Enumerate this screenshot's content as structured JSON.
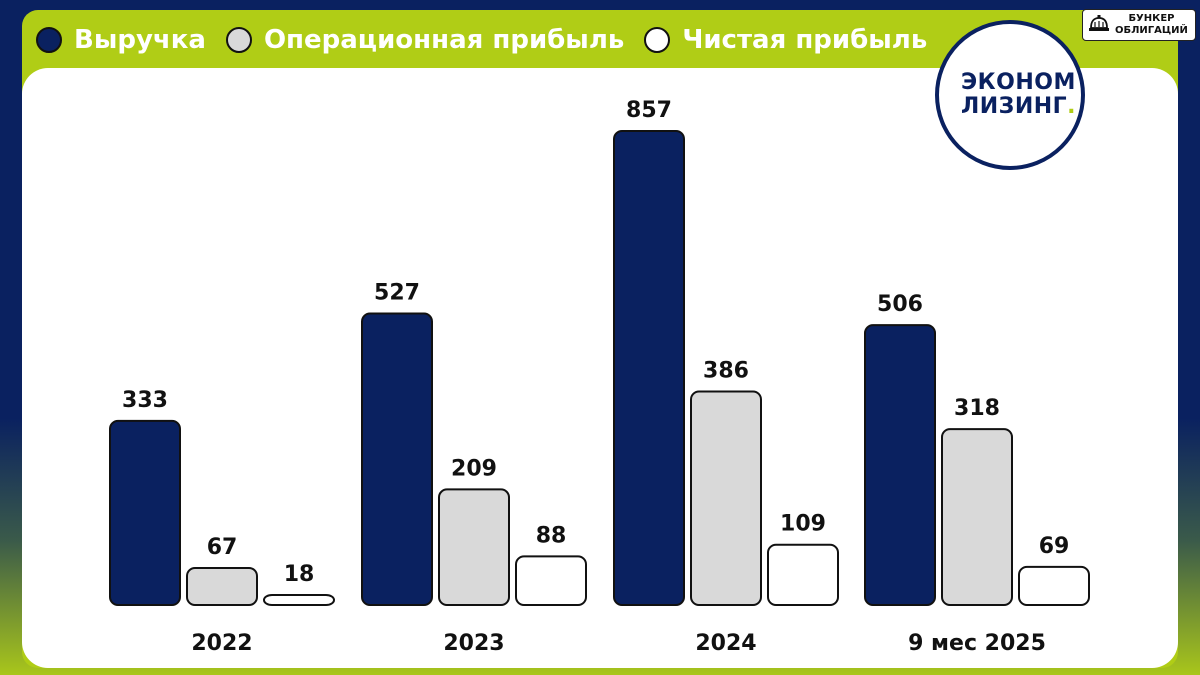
{
  "badge": {
    "icon": "bell-icon",
    "line1": "БУНКЕР",
    "line2": "ОБЛИГАЦИЙ"
  },
  "logo": {
    "line1": "ЭКОНОМ",
    "line2": "ЛИЗИНГ",
    "dot": "."
  },
  "colors": {
    "navy": "#0a2160",
    "lime": "#b0cd16",
    "gray": "#d9d9d9",
    "white": "#ffffff"
  },
  "chart_data": {
    "type": "bar",
    "categories": [
      "2022",
      "2023",
      "2024",
      "9 мес 2025"
    ],
    "series": [
      {
        "name": "Выручка",
        "color": "#0a2160",
        "values": [
          333,
          527,
          857,
          506
        ]
      },
      {
        "name": "Операционная прибыль",
        "color": "#d9d9d9",
        "values": [
          67,
          209,
          386,
          318
        ]
      },
      {
        "name": "Чистая прибыль",
        "color": "#ffffff",
        "values": [
          18,
          88,
          109,
          69
        ]
      }
    ],
    "legend_position": "top-left",
    "grid": false
  }
}
